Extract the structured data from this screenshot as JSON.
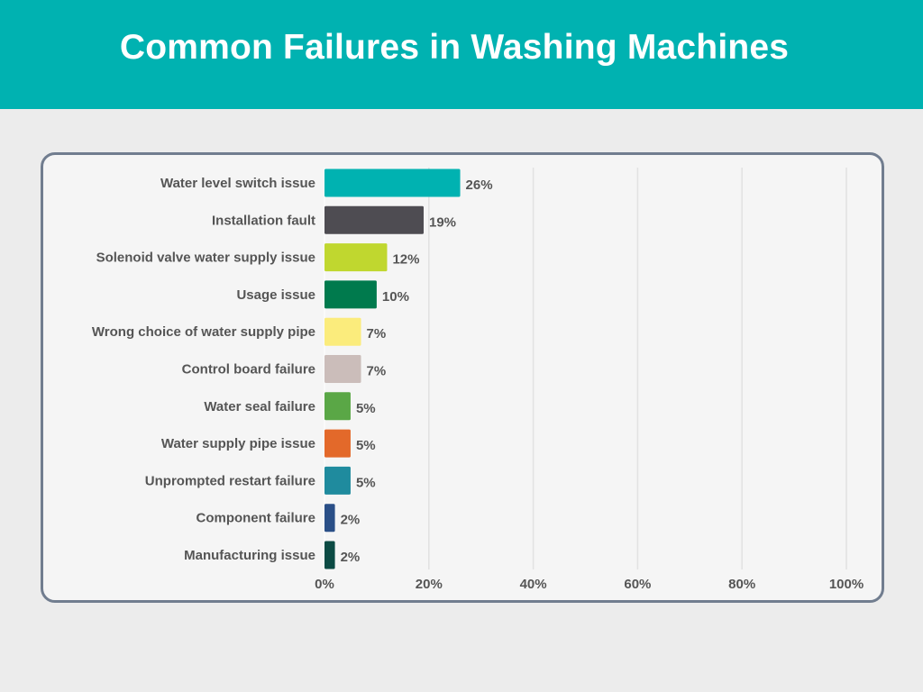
{
  "header": {
    "title": "Common Failures in Washing Machines"
  },
  "colors": {
    "header_bg": "#00b2b1",
    "panel_border": "#717d8f",
    "text": "#555555",
    "grid": "#e2e2e2"
  },
  "chart_data": {
    "type": "bar",
    "orientation": "horizontal",
    "categories": [
      "Water level switch issue",
      "Installation fault",
      "Solenoid valve water supply issue",
      "Usage issue",
      "Wrong choice of water supply pipe",
      "Control board failure",
      "Water seal failure",
      "Water supply pipe issue",
      "Unprompted restart failure",
      "Component failure",
      "Manufacturing issue"
    ],
    "values": [
      26,
      19,
      12,
      10,
      7,
      7,
      5,
      5,
      5,
      2,
      2
    ],
    "value_labels": [
      "26%",
      "19%",
      "12%",
      "10%",
      "7%",
      "7%",
      "5%",
      "5%",
      "5%",
      "2%",
      "2%"
    ],
    "bar_colors": [
      "#00b2b1",
      "#4e4c52",
      "#c0d72f",
      "#007a4d",
      "#fbec7c",
      "#cbbdba",
      "#5aa746",
      "#e3692a",
      "#1f8b9e",
      "#2a4f87",
      "#0c4b44"
    ],
    "xlim": [
      0,
      100
    ],
    "xticks": [
      0,
      20,
      40,
      60,
      80,
      100
    ],
    "xtick_labels": [
      "0%",
      "20%",
      "40%",
      "60%",
      "80%",
      "100%"
    ],
    "grid": true,
    "legend": "none"
  }
}
